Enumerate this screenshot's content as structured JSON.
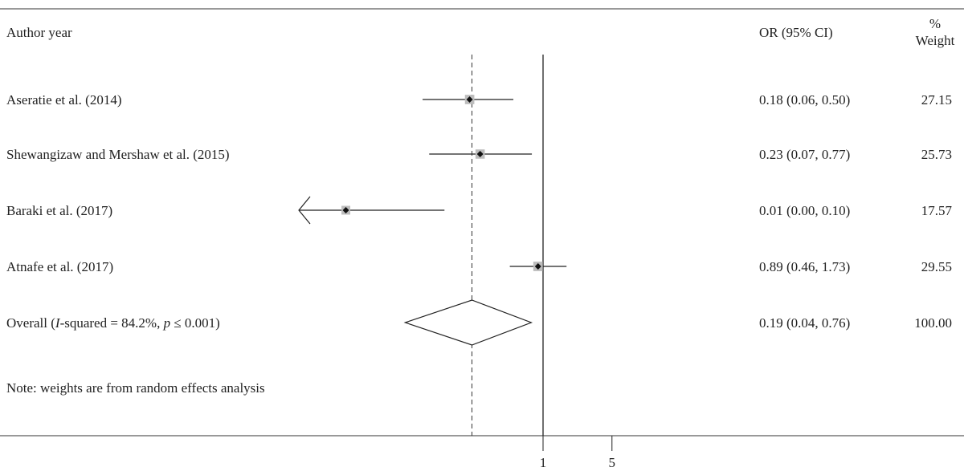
{
  "chart_data": {
    "type": "forest",
    "header": {
      "study_label": "Author year",
      "effect_label": "OR (95% CI)",
      "weight_label_top": "%",
      "weight_label_bottom": "Weight"
    },
    "studies": [
      {
        "label": "Aseratie et al. (2014)",
        "or": 0.18,
        "lo": 0.06,
        "hi": 0.5,
        "ci_text": "0.18 (0.06, 0.50)",
        "weight": "27.15"
      },
      {
        "label": "Shewangizaw and Mershaw et al. (2015)",
        "or": 0.23,
        "lo": 0.07,
        "hi": 0.77,
        "ci_text": "0.23 (0.07, 0.77)",
        "weight": "25.73"
      },
      {
        "label": "Baraki et al. (2017)",
        "or": 0.01,
        "lo": 0.0,
        "hi": 0.1,
        "ci_text": "0.01 (0.00, 0.10)",
        "weight": "17.57",
        "arrow_left": true
      },
      {
        "label": "Atnafe et al. (2017)",
        "or": 0.89,
        "lo": 0.46,
        "hi": 1.73,
        "ci_text": "0.89 (0.46, 1.73)",
        "weight": "29.55"
      }
    ],
    "overall": {
      "label_prefix": "Overall (",
      "label_i": "I",
      "label_mid": "-squared = 84.2%, ",
      "label_p": "p",
      "label_end": " ≤ 0.001)",
      "or": 0.19,
      "lo": 0.04,
      "hi": 0.76,
      "ci_text": "0.19 (0.04, 0.76)",
      "weight": "100.00"
    },
    "note": "Note: weights are from random effects analysis",
    "x_ticks": [
      {
        "value": 1,
        "label": "1"
      },
      {
        "value": 5,
        "label": "5"
      }
    ],
    "null_line": 1,
    "scale": "log"
  }
}
